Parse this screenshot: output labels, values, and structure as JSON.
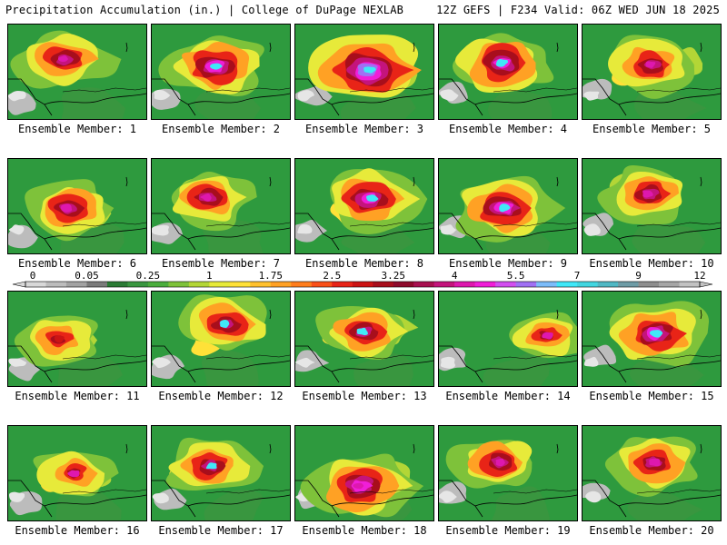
{
  "header": {
    "left": "Precipitation Accumulation (in.) | College of DuPage NEXLAB",
    "right": "12Z GEFS | F234 Valid: 06Z WED JUN 18 2025"
  },
  "legend": {
    "tick_labels": [
      "0",
      "0.05",
      "0.25",
      "1",
      "1.75",
      "2.5",
      "3.25",
      "4",
      "5.5",
      "7",
      "9",
      "12"
    ],
    "bins": [
      0,
      0.01,
      0.03,
      0.05,
      0.1,
      0.15,
      0.25,
      0.4,
      0.6,
      1,
      1.25,
      1.5,
      1.75,
      2,
      2.25,
      2.5,
      2.75,
      3,
      3.25,
      3.5,
      3.75,
      4,
      4.5,
      5,
      5.5,
      6,
      6.5,
      7,
      7.5,
      8,
      9,
      10,
      11,
      12
    ],
    "colors": [
      "#d8d8d8",
      "#bcbcbc",
      "#a2a2a2",
      "#7a7a7a",
      "#2a7a34",
      "#39963f",
      "#4aad3c",
      "#7ec23a",
      "#b3d636",
      "#e7ea3a",
      "#ffe138",
      "#ffc12e",
      "#ffa124",
      "#ff7d1c",
      "#fa5018",
      "#e82417",
      "#cc1414",
      "#a80e1c",
      "#8e0a2c",
      "#a81050",
      "#c4147c",
      "#de18ae",
      "#f01ed8",
      "#d24ef0",
      "#a070f4",
      "#7cbcfa",
      "#40e8f8",
      "#42d6e0",
      "#50b8c4",
      "#6e9ca6",
      "#8e8e8e",
      "#a6a6a6",
      "#c2c2c2"
    ]
  },
  "panels": [
    {
      "label": "Ensemble Member: 1",
      "intensity": "moderate",
      "peak": "magenta"
    },
    {
      "label": "Ensemble Member: 2",
      "intensity": "high",
      "peak": "cyan"
    },
    {
      "label": "Ensemble Member: 3",
      "intensity": "very-high",
      "peak": "cyan"
    },
    {
      "label": "Ensemble Member: 4",
      "intensity": "high",
      "peak": "cyan"
    },
    {
      "label": "Ensemble Member: 5",
      "intensity": "moderate",
      "peak": "magenta"
    },
    {
      "label": "Ensemble Member: 6",
      "intensity": "moderate",
      "peak": "magenta"
    },
    {
      "label": "Ensemble Member: 7",
      "intensity": "moderate",
      "peak": "magenta"
    },
    {
      "label": "Ensemble Member: 8",
      "intensity": "high",
      "peak": "cyan"
    },
    {
      "label": "Ensemble Member: 9",
      "intensity": "high",
      "peak": "cyan"
    },
    {
      "label": "Ensemble Member: 10",
      "intensity": "moderate",
      "peak": "magenta"
    },
    {
      "label": "Ensemble Member: 11",
      "intensity": "low",
      "peak": "red"
    },
    {
      "label": "Ensemble Member: 12",
      "intensity": "moderate",
      "peak": "cyan"
    },
    {
      "label": "Ensemble Member: 13",
      "intensity": "moderate",
      "peak": "cyan"
    },
    {
      "label": "Ensemble Member: 14",
      "intensity": "low",
      "peak": "magenta"
    },
    {
      "label": "Ensemble Member: 15",
      "intensity": "high",
      "peak": "cyan"
    },
    {
      "label": "Ensemble Member: 16",
      "intensity": "low",
      "peak": "magenta"
    },
    {
      "label": "Ensemble Member: 17",
      "intensity": "moderate",
      "peak": "cyan"
    },
    {
      "label": "Ensemble Member: 18",
      "intensity": "high",
      "peak": "magenta"
    },
    {
      "label": "Ensemble Member: 19",
      "intensity": "moderate",
      "peak": "magenta"
    },
    {
      "label": "Ensemble Member: 20",
      "intensity": "moderate",
      "peak": "magenta"
    }
  ]
}
